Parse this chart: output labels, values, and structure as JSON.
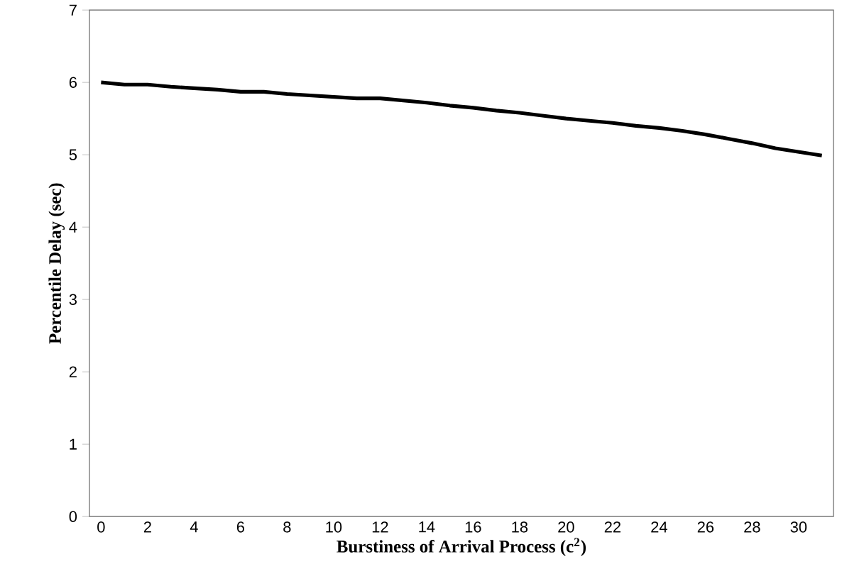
{
  "chart_data": {
    "type": "line",
    "xlabel": "Burstiness of Arrival Process (c$^{2}$)",
    "ylabel": "Percentile Delay (sec)",
    "x": [
      0,
      1,
      2,
      3,
      4,
      5,
      6,
      7,
      8,
      9,
      10,
      11,
      12,
      13,
      14,
      15,
      16,
      17,
      18,
      19,
      20,
      21,
      22,
      23,
      24,
      25,
      26,
      27,
      28,
      29,
      30,
      31
    ],
    "series": [
      {
        "color": "#000000",
        "values": [
          6.0,
          5.97,
          5.97,
          5.94,
          5.92,
          5.9,
          5.87,
          5.87,
          5.84,
          5.82,
          5.8,
          5.78,
          5.78,
          5.75,
          5.72,
          5.68,
          5.65,
          5.61,
          5.58,
          5.54,
          5.5,
          5.47,
          5.44,
          5.4,
          5.37,
          5.33,
          5.28,
          5.22,
          5.16,
          5.09,
          5.04,
          4.99
        ]
      }
    ],
    "xlim": [
      -0.5,
      31.5
    ],
    "xticks": [
      0,
      2,
      4,
      6,
      8,
      10,
      12,
      14,
      16,
      18,
      20,
      22,
      24,
      26,
      28,
      30
    ],
    "ylim": [
      0,
      7
    ],
    "yticks": [
      0,
      1,
      2,
      3,
      4,
      5,
      6,
      7
    ],
    "grid": false,
    "marker": "none",
    "line_style": "solid"
  }
}
